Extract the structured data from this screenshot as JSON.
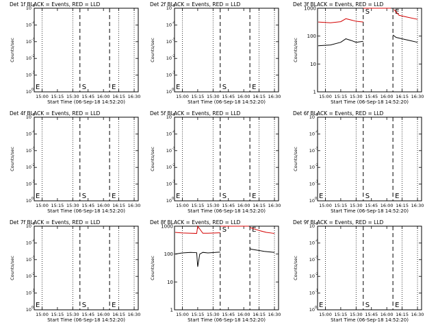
{
  "figure": {
    "panel_title_suffix": "BLACK = Events, RED = LLD",
    "xlabel": "Start Time (06-Sep-18 14:52:20)",
    "ylabel": "Counts/sec"
  },
  "colors": {
    "events": "#000000",
    "lld": "#d40000",
    "axes": "#000000"
  },
  "chart_data": [
    {
      "type": "line",
      "title": "Det 1f BLACK = Events, RED = LLD",
      "xlabel": "Start Time (06-Sep-18 14:52:20)",
      "ylabel": "Counts/sec",
      "x_ticks": [
        "15:00",
        "15:15",
        "15:30",
        "15:45",
        "16:00",
        "16:15",
        "16:30"
      ],
      "y_ticks": [
        "10^0",
        "10^-1",
        "10^-2",
        "10^-3",
        "10^-4",
        "10^-5"
      ],
      "y_scale": "log",
      "markers": [
        {
          "label": "S",
          "time": "15:37"
        },
        {
          "label": "E",
          "time": "16:06"
        }
      ],
      "series": []
    },
    {
      "type": "line",
      "title": "Det 2f BLACK = Events, RED = LLD",
      "xlabel": "Start Time (06-Sep-18 14:52:20)",
      "ylabel": "Counts/sec",
      "x_ticks": [
        "15:00",
        "15:15",
        "15:30",
        "15:45",
        "16:00",
        "16:15",
        "16:30"
      ],
      "y_ticks": [
        "10^0",
        "10^-1",
        "10^-2",
        "10^-3",
        "10^-4",
        "10^-5"
      ],
      "y_scale": "log",
      "markers": [
        {
          "label": "S",
          "time": "15:37"
        },
        {
          "label": "E",
          "time": "16:06"
        }
      ],
      "series": []
    },
    {
      "type": "line",
      "title": "Det 3f BLACK = Events, RED = LLD",
      "xlabel": "Start Time (06-Sep-18 14:52:20)",
      "ylabel": "Counts/sec",
      "x_ticks": [
        "15:00",
        "15:15",
        "15:30",
        "15:45",
        "16:00",
        "16:15",
        "16:30"
      ],
      "y_ticks": [
        "1000",
        "100",
        "10",
        "1"
      ],
      "y_scale": "log",
      "markers": [
        {
          "label": "S",
          "time": "15:37"
        },
        {
          "label": "E",
          "time": "16:06"
        }
      ],
      "series": [
        {
          "color": "lld",
          "segments": [
            {
              "x": [
                "14:53",
                "15:05",
                "15:15",
                "15:20",
                "15:25",
                "15:30",
                "15:37"
              ],
              "y": [
                320,
                300,
                330,
                420,
                380,
                340,
                320
              ]
            },
            {
              "x": [
                "15:37",
                "15:45",
                "15:55",
                "16:00",
                "16:04"
              ],
              "y": [
                1000,
                1000,
                1000,
                1000,
                1000
              ]
            },
            {
              "x": [
                "16:07",
                "16:12",
                "16:20",
                "16:30"
              ],
              "y": [
                900,
                560,
                480,
                400
              ]
            }
          ]
        },
        {
          "color": "events",
          "segments": [
            {
              "x": [
                "14:53",
                "15:05",
                "15:15",
                "15:20",
                "15:25",
                "15:30",
                "15:37"
              ],
              "y": [
                45,
                48,
                60,
                80,
                70,
                60,
                65
              ]
            },
            {
              "x": [
                "16:06",
                "16:09",
                "16:15",
                "16:22",
                "16:30"
              ],
              "y": [
                110,
                90,
                80,
                70,
                60
              ]
            }
          ]
        }
      ]
    },
    {
      "type": "line",
      "title": "Det 4f BLACK = Events, RED = LLD",
      "xlabel": "Start Time (06-Sep-18 14:52:20)",
      "ylabel": "Counts/sec",
      "x_ticks": [
        "15:00",
        "15:15",
        "15:30",
        "15:45",
        "16:00",
        "16:15",
        "16:30"
      ],
      "y_ticks": [
        "10^0",
        "10^-1",
        "10^-2",
        "10^-3",
        "10^-4",
        "10^-5"
      ],
      "y_scale": "log",
      "markers": [
        {
          "label": "S",
          "time": "15:37"
        },
        {
          "label": "E",
          "time": "16:06"
        }
      ],
      "series": []
    },
    {
      "type": "line",
      "title": "Det 5f BLACK = Events, RED = LLD",
      "xlabel": "Start Time (06-Sep-18 14:52:20)",
      "ylabel": "Counts/sec",
      "x_ticks": [
        "15:00",
        "15:15",
        "15:30",
        "15:45",
        "16:00",
        "16:15",
        "16:30"
      ],
      "y_ticks": [
        "10^0",
        "10^-1",
        "10^-2",
        "10^-3",
        "10^-4",
        "10^-5"
      ],
      "y_scale": "log",
      "markers": [
        {
          "label": "S",
          "time": "15:37"
        },
        {
          "label": "E",
          "time": "16:06"
        }
      ],
      "series": []
    },
    {
      "type": "line",
      "title": "Det 6f BLACK = Events, RED = LLD",
      "xlabel": "Start Time (06-Sep-18 14:52:20)",
      "ylabel": "Counts/sec",
      "x_ticks": [
        "15:00",
        "15:15",
        "15:30",
        "15:45",
        "16:00",
        "16:15",
        "16:30"
      ],
      "y_ticks": [
        "10^0",
        "10^-1",
        "10^-2",
        "10^-3",
        "10^-4",
        "10^-5"
      ],
      "y_scale": "log",
      "markers": [
        {
          "label": "S",
          "time": "15:37"
        },
        {
          "label": "E",
          "time": "16:06"
        }
      ],
      "series": []
    },
    {
      "type": "line",
      "title": "Det 7f BLACK = Events, RED = LLD",
      "xlabel": "Start Time (06-Sep-18 14:52:20)",
      "ylabel": "Counts/sec",
      "x_ticks": [
        "15:00",
        "15:15",
        "15:30",
        "15:45",
        "16:00",
        "16:15",
        "16:30"
      ],
      "y_ticks": [
        "10^0",
        "10^-1",
        "10^-2",
        "10^-3",
        "10^-4",
        "10^-5"
      ],
      "y_scale": "log",
      "markers": [
        {
          "label": "S",
          "time": "15:37"
        },
        {
          "label": "E",
          "time": "16:06"
        }
      ],
      "series": []
    },
    {
      "type": "line",
      "title": "Det 8f BLACK = Events, RED = LLD",
      "xlabel": "Start Time (06-Sep-18 14:52:20)",
      "ylabel": "Counts/sec",
      "x_ticks": [
        "15:00",
        "15:15",
        "15:30",
        "15:45",
        "16:00",
        "16:15",
        "16:30"
      ],
      "y_ticks": [
        "1000",
        "100",
        "10",
        "1"
      ],
      "y_scale": "log",
      "markers": [
        {
          "label": "S",
          "time": "15:37"
        },
        {
          "label": "E",
          "time": "16:06"
        }
      ],
      "series": [
        {
          "color": "lld",
          "segments": [
            {
              "x": [
                "14:53",
                "15:00",
                "15:08",
                "15:14",
                "15:15",
                "15:20",
                "15:25",
                "15:37"
              ],
              "y": [
                600,
                570,
                560,
                550,
                1000,
                560,
                560,
                580
              ]
            },
            {
              "x": [
                "15:37",
                "15:50",
                "16:00",
                "16:05"
              ],
              "y": [
                1000,
                1000,
                1000,
                1000
              ]
            },
            {
              "x": [
                "16:06",
                "16:15",
                "16:22",
                "16:30"
              ],
              "y": [
                900,
                700,
                600,
                550
              ]
            }
          ]
        },
        {
          "color": "events",
          "segments": [
            {
              "x": [
                "14:53",
                "15:00",
                "15:08",
                "15:14",
                "15:15",
                "15:17",
                "15:20",
                "15:25",
                "15:37"
              ],
              "y": [
                100,
                110,
                115,
                112,
                35,
                100,
                115,
                110,
                118
              ]
            },
            {
              "x": [
                "16:06",
                "16:07",
                "16:12",
                "16:20",
                "16:30"
              ],
              "y": [
                160,
                150,
                140,
                125,
                115
              ]
            }
          ]
        }
      ]
    },
    {
      "type": "line",
      "title": "Det 9f BLACK = Events, RED = LLD",
      "xlabel": "Start Time (06-Sep-18 14:52:20)",
      "ylabel": "Counts/sec",
      "x_ticks": [
        "15:00",
        "15:15",
        "15:30",
        "15:45",
        "16:00",
        "16:15",
        "16:30"
      ],
      "y_ticks": [
        "10^0",
        "10^-1",
        "10^-2",
        "10^-3",
        "10^-4",
        "10^-5"
      ],
      "y_scale": "log",
      "markers": [
        {
          "label": "S",
          "time": "15:37"
        },
        {
          "label": "E",
          "time": "16:06"
        }
      ],
      "series": []
    }
  ]
}
